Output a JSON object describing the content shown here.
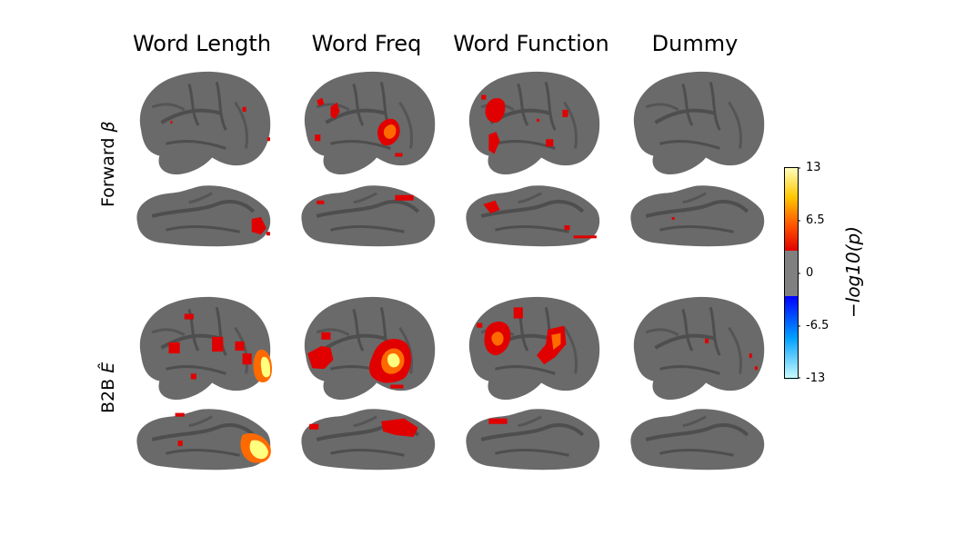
{
  "columns": [
    "Word Length",
    "Word Freq",
    "Word Function",
    "Dummy"
  ],
  "rows": [
    {
      "label_main": "Forward ",
      "label_symbol": "β"
    },
    {
      "label_main": "B2B ",
      "label_symbol": "Ê"
    }
  ],
  "colorbar": {
    "label": "−log10(p)",
    "ticks": [
      "13",
      "6.5",
      "0",
      "-6.5",
      "-13"
    ],
    "colormap": [
      "#00ffff",
      "#0000ff",
      "#808080",
      "#ff0000",
      "#ffff00"
    ]
  },
  "colors": {
    "cortex": "#6a6a6a",
    "sulcus": "#4e4e4e",
    "activation_low": "#e00000",
    "activation_mid": "#ff6a00",
    "activation_high": "#ffff80"
  }
}
